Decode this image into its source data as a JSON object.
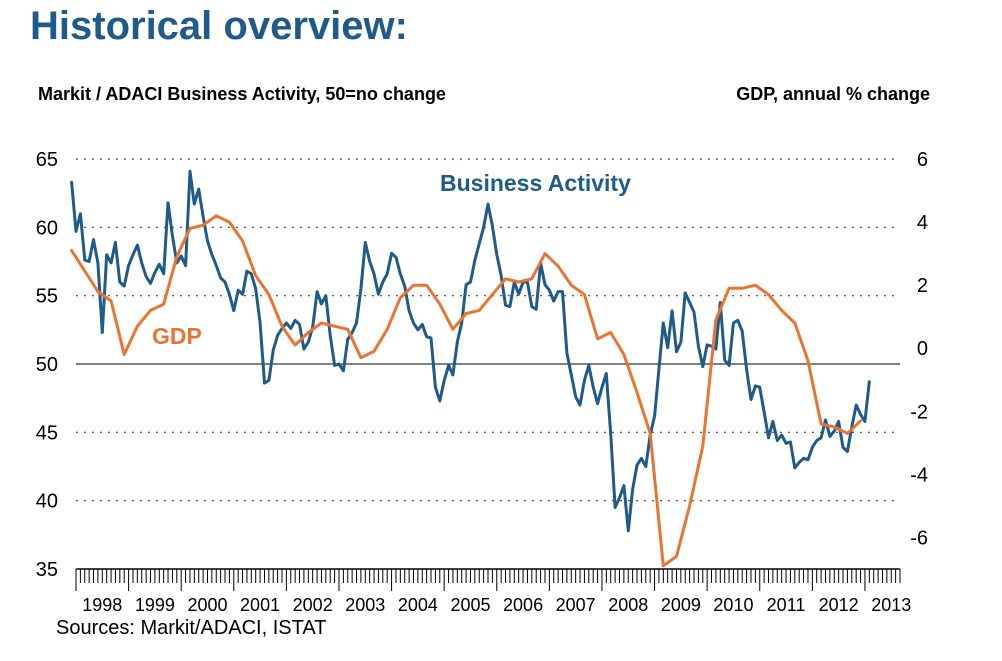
{
  "page": {
    "title": "Historical overview:",
    "left_axis_caption": "Markit / ADACI  Business Activity, 50=no change",
    "right_axis_caption": "GDP, annual % change",
    "source": "Sources: Markit/ADACI, ISTAT"
  },
  "chart_data": {
    "type": "line",
    "x_start": "1998-01",
    "x_end": "2013-09",
    "x_tick_labels": [
      "1998",
      "1999",
      "2000",
      "2001",
      "2002",
      "2003",
      "2004",
      "2005",
      "2006",
      "2007",
      "2008",
      "2009",
      "2010",
      "2011",
      "2012",
      "2013"
    ],
    "y_left": {
      "lim": [
        35,
        65
      ],
      "ticks": [
        "35",
        "40",
        "45",
        "50",
        "55",
        "60",
        "65"
      ]
    },
    "y_right": {
      "lim": [
        -7,
        6
      ],
      "ticks": [
        "-6",
        "-4",
        "-2",
        "0",
        "2",
        "4",
        "6"
      ]
    },
    "grid": true,
    "reference_line": 50,
    "series": [
      {
        "name": "Business Activity",
        "axis": "left",
        "color": "#1f5a8a",
        "points": [
          [
            "1997-12",
            63.3
          ],
          [
            "1998-01",
            59.7
          ],
          [
            "1998-02",
            61.0
          ],
          [
            "1998-03",
            57.6
          ],
          [
            "1998-04",
            57.5
          ],
          [
            "1998-05",
            59.1
          ],
          [
            "1998-06",
            57.4
          ],
          [
            "1998-07",
            52.3
          ],
          [
            "1998-08",
            58.0
          ],
          [
            "1998-09",
            57.4
          ],
          [
            "1998-10",
            58.9
          ],
          [
            "1998-11",
            56.0
          ],
          [
            "1998-12",
            55.7
          ],
          [
            "1999-01",
            57.2
          ],
          [
            "1999-02",
            58.0
          ],
          [
            "1999-03",
            58.7
          ],
          [
            "1999-04",
            57.4
          ],
          [
            "1999-05",
            56.4
          ],
          [
            "1999-06",
            55.9
          ],
          [
            "1999-07",
            56.7
          ],
          [
            "1999-08",
            57.3
          ],
          [
            "1999-09",
            56.6
          ],
          [
            "1999-10",
            61.8
          ],
          [
            "1999-11",
            59.4
          ],
          [
            "1999-12",
            57.4
          ],
          [
            "2000-01",
            57.9
          ],
          [
            "2000-02",
            57.2
          ],
          [
            "2000-03",
            64.1
          ],
          [
            "2000-04",
            61.7
          ],
          [
            "2000-05",
            62.8
          ],
          [
            "2000-06",
            60.8
          ],
          [
            "2000-07",
            59.0
          ],
          [
            "2000-08",
            58.0
          ],
          [
            "2000-09",
            57.2
          ],
          [
            "2000-10",
            56.3
          ],
          [
            "2000-11",
            56.0
          ],
          [
            "2000-12",
            55.1
          ],
          [
            "2001-01",
            53.9
          ],
          [
            "2001-02",
            55.4
          ],
          [
            "2001-03",
            55.1
          ],
          [
            "2001-04",
            56.8
          ],
          [
            "2001-05",
            56.6
          ],
          [
            "2001-06",
            55.5
          ],
          [
            "2001-07",
            53.0
          ],
          [
            "2001-08",
            48.6
          ],
          [
            "2001-09",
            48.8
          ],
          [
            "2001-10",
            51.0
          ],
          [
            "2001-11",
            52.1
          ],
          [
            "2001-12",
            52.6
          ],
          [
            "2002-01",
            53.0
          ],
          [
            "2002-02",
            52.6
          ],
          [
            "2002-03",
            53.2
          ],
          [
            "2002-04",
            52.9
          ],
          [
            "2002-05",
            51.1
          ],
          [
            "2002-06",
            51.6
          ],
          [
            "2002-07",
            52.7
          ],
          [
            "2002-08",
            55.3
          ],
          [
            "2002-09",
            54.4
          ],
          [
            "2002-10",
            55.0
          ],
          [
            "2002-11",
            52.1
          ],
          [
            "2002-12",
            49.9
          ],
          [
            "2003-01",
            50.0
          ],
          [
            "2003-02",
            49.5
          ],
          [
            "2003-03",
            51.8
          ],
          [
            "2003-04",
            52.3
          ],
          [
            "2003-05",
            53.0
          ],
          [
            "2003-06",
            55.5
          ],
          [
            "2003-07",
            58.9
          ],
          [
            "2003-08",
            57.5
          ],
          [
            "2003-09",
            56.6
          ],
          [
            "2003-10",
            55.1
          ],
          [
            "2003-11",
            56.0
          ],
          [
            "2003-12",
            56.6
          ],
          [
            "2004-01",
            58.1
          ],
          [
            "2004-02",
            57.8
          ],
          [
            "2004-03",
            56.6
          ],
          [
            "2004-04",
            55.7
          ],
          [
            "2004-05",
            53.9
          ],
          [
            "2004-06",
            53.0
          ],
          [
            "2004-07",
            52.5
          ],
          [
            "2004-08",
            52.9
          ],
          [
            "2004-09",
            52.0
          ],
          [
            "2004-10",
            51.9
          ],
          [
            "2004-11",
            48.3
          ],
          [
            "2004-12",
            47.3
          ],
          [
            "2005-01",
            48.8
          ],
          [
            "2005-02",
            49.9
          ],
          [
            "2005-03",
            49.2
          ],
          [
            "2005-04",
            51.6
          ],
          [
            "2005-05",
            53.0
          ],
          [
            "2005-06",
            55.8
          ],
          [
            "2005-07",
            56.0
          ],
          [
            "2005-08",
            57.6
          ],
          [
            "2005-09",
            58.8
          ],
          [
            "2005-10",
            60.0
          ],
          [
            "2005-11",
            61.7
          ],
          [
            "2005-12",
            60.1
          ],
          [
            "2006-01",
            58.0
          ],
          [
            "2006-02",
            56.5
          ],
          [
            "2006-03",
            54.3
          ],
          [
            "2006-04",
            54.2
          ],
          [
            "2006-05",
            56.0
          ],
          [
            "2006-06",
            55.1
          ],
          [
            "2006-07",
            56.0
          ],
          [
            "2006-08",
            56.0
          ],
          [
            "2006-09",
            54.2
          ],
          [
            "2006-10",
            54.0
          ],
          [
            "2006-11",
            57.4
          ],
          [
            "2006-12",
            55.8
          ],
          [
            "2007-01",
            55.4
          ],
          [
            "2007-02",
            54.6
          ],
          [
            "2007-03",
            55.3
          ],
          [
            "2007-04",
            55.3
          ],
          [
            "2007-05",
            50.8
          ],
          [
            "2007-06",
            49.2
          ],
          [
            "2007-07",
            47.6
          ],
          [
            "2007-08",
            47.0
          ],
          [
            "2007-09",
            48.8
          ],
          [
            "2007-10",
            49.9
          ],
          [
            "2007-11",
            48.3
          ],
          [
            "2007-12",
            47.1
          ],
          [
            "2008-01",
            48.3
          ],
          [
            "2008-02",
            49.3
          ],
          [
            "2008-03",
            44.9
          ],
          [
            "2008-04",
            39.5
          ],
          [
            "2008-05",
            40.2
          ],
          [
            "2008-06",
            41.1
          ],
          [
            "2008-07",
            37.8
          ],
          [
            "2008-08",
            40.8
          ],
          [
            "2008-09",
            42.6
          ],
          [
            "2008-10",
            43.1
          ],
          [
            "2008-11",
            42.5
          ],
          [
            "2008-12",
            44.8
          ],
          [
            "2009-01",
            46.2
          ],
          [
            "2009-02",
            49.6
          ],
          [
            "2009-03",
            53.0
          ],
          [
            "2009-04",
            51.2
          ],
          [
            "2009-05",
            53.9
          ],
          [
            "2009-06",
            50.9
          ],
          [
            "2009-07",
            51.6
          ],
          [
            "2009-08",
            55.2
          ],
          [
            "2009-09",
            54.5
          ],
          [
            "2009-10",
            53.8
          ],
          [
            "2009-11",
            51.3
          ],
          [
            "2009-12",
            49.8
          ],
          [
            "2010-01",
            51.4
          ],
          [
            "2010-02",
            51.3
          ],
          [
            "2010-03",
            51.1
          ],
          [
            "2010-04",
            54.5
          ],
          [
            "2010-05",
            50.3
          ],
          [
            "2010-06",
            49.9
          ],
          [
            "2010-07",
            53.0
          ],
          [
            "2010-08",
            53.2
          ],
          [
            "2010-09",
            52.4
          ],
          [
            "2010-10",
            49.6
          ],
          [
            "2010-11",
            47.4
          ],
          [
            "2010-12",
            48.4
          ],
          [
            "2011-01",
            48.3
          ],
          [
            "2011-02",
            46.5
          ],
          [
            "2011-03",
            44.6
          ],
          [
            "2011-04",
            45.8
          ],
          [
            "2011-05",
            44.4
          ],
          [
            "2011-06",
            44.8
          ],
          [
            "2011-07",
            44.2
          ],
          [
            "2011-08",
            44.3
          ],
          [
            "2011-09",
            42.4
          ],
          [
            "2011-10",
            42.8
          ],
          [
            "2011-11",
            43.1
          ],
          [
            "2011-12",
            43.0
          ],
          [
            "2012-01",
            43.9
          ],
          [
            "2012-02",
            44.4
          ],
          [
            "2012-03",
            44.6
          ],
          [
            "2012-04",
            45.9
          ],
          [
            "2012-05",
            44.7
          ],
          [
            "2012-06",
            45.1
          ],
          [
            "2012-07",
            45.8
          ],
          [
            "2012-08",
            43.9
          ],
          [
            "2012-09",
            43.6
          ],
          [
            "2012-10",
            45.4
          ],
          [
            "2012-11",
            47.0
          ],
          [
            "2012-12",
            46.3
          ],
          [
            "2013-01",
            45.8
          ],
          [
            "2013-02",
            48.7
          ]
        ]
      },
      {
        "name": "GDP",
        "axis": "right",
        "color": "#e8742f",
        "points": [
          [
            "1997-12",
            3.1
          ],
          [
            "1998-06",
            1.8
          ],
          [
            "1998-09",
            1.5
          ],
          [
            "1998-12",
            -0.2
          ],
          [
            "1999-03",
            0.7
          ],
          [
            "1999-06",
            1.2
          ],
          [
            "1999-09",
            1.4
          ],
          [
            "1999-12",
            2.9
          ],
          [
            "2000-03",
            3.8
          ],
          [
            "2000-06",
            3.9
          ],
          [
            "2000-09",
            4.2
          ],
          [
            "2000-12",
            4.0
          ],
          [
            "2001-03",
            3.4
          ],
          [
            "2001-06",
            2.3
          ],
          [
            "2001-09",
            1.7
          ],
          [
            "2001-12",
            0.7
          ],
          [
            "2002-03",
            0.1
          ],
          [
            "2002-06",
            0.5
          ],
          [
            "2002-09",
            0.8
          ],
          [
            "2002-12",
            0.7
          ],
          [
            "2003-03",
            0.6
          ],
          [
            "2003-06",
            -0.3
          ],
          [
            "2003-09",
            -0.1
          ],
          [
            "2003-12",
            0.6
          ],
          [
            "2004-03",
            1.6
          ],
          [
            "2004-06",
            2.0
          ],
          [
            "2004-09",
            2.0
          ],
          [
            "2004-12",
            1.4
          ],
          [
            "2005-03",
            0.6
          ],
          [
            "2005-06",
            1.1
          ],
          [
            "2005-09",
            1.2
          ],
          [
            "2005-12",
            1.7
          ],
          [
            "2006-03",
            2.2
          ],
          [
            "2006-06",
            2.1
          ],
          [
            "2006-09",
            2.2
          ],
          [
            "2006-12",
            3.0
          ],
          [
            "2007-03",
            2.6
          ],
          [
            "2007-06",
            2.0
          ],
          [
            "2007-09",
            1.7
          ],
          [
            "2007-12",
            0.3
          ],
          [
            "2008-03",
            0.5
          ],
          [
            "2008-06",
            -0.2
          ],
          [
            "2008-09",
            -1.4
          ],
          [
            "2008-12",
            -2.7
          ],
          [
            "2009-03",
            -6.9
          ],
          [
            "2009-06",
            -6.6
          ],
          [
            "2009-09",
            -5.0
          ],
          [
            "2009-12",
            -3.1
          ],
          [
            "2010-03",
            0.9
          ],
          [
            "2010-06",
            1.9
          ],
          [
            "2010-09",
            1.9
          ],
          [
            "2010-12",
            2.0
          ],
          [
            "2011-03",
            1.7
          ],
          [
            "2011-06",
            1.2
          ],
          [
            "2011-09",
            0.8
          ],
          [
            "2011-12",
            -0.4
          ],
          [
            "2012-03",
            -2.4
          ],
          [
            "2012-06",
            -2.5
          ],
          [
            "2012-09",
            -2.7
          ],
          [
            "2012-12",
            -2.3
          ]
        ]
      }
    ],
    "annotations": [
      {
        "text": "Business Activity",
        "series": "Business Activity"
      },
      {
        "text": "GDP",
        "series": "GDP"
      }
    ]
  }
}
